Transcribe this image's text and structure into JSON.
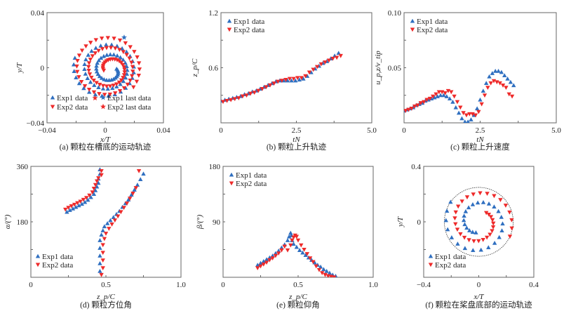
{
  "colors": {
    "exp1": "#2f6fc0",
    "exp2": "#ee2a2a",
    "frame": "#666666",
    "circle": "#333333"
  },
  "chart_data": [
    {
      "id": "a",
      "type": "scatter",
      "caption": "(a) 颗粒在槽底的运动轨迹",
      "xlabel": "x/T",
      "ylabel": "y/T",
      "xlim": [
        -0.04,
        0.04
      ],
      "ylim": [
        -0.04,
        0.04
      ],
      "xticks": [
        "−0.04",
        "0",
        "0.04"
      ],
      "yticks": [
        "−0.04",
        "0",
        "0.04"
      ],
      "xtick_values": [
        -0.04,
        0,
        0.04
      ],
      "ytick_values": [
        -0.04,
        0,
        0.04
      ],
      "legend": [
        "Exp1 data",
        "Exp1 last data",
        "Exp2 data",
        "Exp2 last data"
      ],
      "legend_position": "bottom",
      "series": [
        {
          "name": "Exp1 data",
          "marker": "triangle-up",
          "kind": "spiral",
          "r_start": 0.004,
          "r_end": 0.022,
          "turns": 2.6,
          "n": 75,
          "x": [],
          "y": []
        },
        {
          "name": "Exp1 last data",
          "marker": "star",
          "x": [
            0.013
          ],
          "y": [
            0.022
          ]
        },
        {
          "name": "Exp2 data",
          "marker": "triangle-down",
          "kind": "spiral",
          "r_start": 0.005,
          "r_end": 0.024,
          "turns": 2.6,
          "n": 85,
          "x": [],
          "y": []
        },
        {
          "name": "Exp2 last data",
          "marker": "star",
          "x": [
            -0.007
          ],
          "y": [
            -0.022
          ]
        }
      ]
    },
    {
      "id": "b",
      "type": "scatter",
      "caption": "(b) 颗粒上升轨迹",
      "xlabel": "tN",
      "ylabel": "z_p/C",
      "xlim": [
        0,
        5.0
      ],
      "ylim": [
        0,
        1.2
      ],
      "xticks": [
        "0",
        "2.5",
        "5.0"
      ],
      "yticks": [
        "0.6",
        "1.2"
      ],
      "xtick_values": [
        0,
        2.5,
        5.0
      ],
      "ytick_values": [
        0.6,
        1.2
      ],
      "legend": [
        "Exp1 data",
        "Exp2 data"
      ],
      "legend_position": "top-left",
      "series": [
        {
          "name": "Exp1 data",
          "marker": "triangle-up",
          "x": [
            0.0,
            0.13,
            0.26,
            0.39,
            0.52,
            0.65,
            0.78,
            0.91,
            1.04,
            1.17,
            1.3,
            1.43,
            1.56,
            1.69,
            1.82,
            1.95,
            2.08,
            2.21,
            2.34,
            2.47,
            2.6,
            2.73,
            2.86,
            2.99,
            3.12,
            3.25,
            3.38,
            3.51,
            3.64,
            3.77,
            3.9
          ],
          "y": [
            0.24,
            0.25,
            0.26,
            0.27,
            0.28,
            0.29,
            0.31,
            0.32,
            0.34,
            0.35,
            0.37,
            0.39,
            0.41,
            0.43,
            0.45,
            0.46,
            0.46,
            0.46,
            0.46,
            0.46,
            0.47,
            0.48,
            0.51,
            0.55,
            0.59,
            0.62,
            0.65,
            0.67,
            0.7,
            0.73,
            0.76
          ]
        },
        {
          "name": "Exp2 data",
          "marker": "triangle-down",
          "x": [
            0.07,
            0.2,
            0.33,
            0.46,
            0.59,
            0.72,
            0.85,
            0.98,
            1.11,
            1.24,
            1.37,
            1.5,
            1.63,
            1.76,
            1.89,
            2.02,
            2.15,
            2.28,
            2.41,
            2.54,
            2.67,
            2.8,
            2.93,
            3.06,
            3.19,
            3.32,
            3.45,
            3.58,
            3.71,
            3.84,
            3.97
          ],
          "y": [
            0.23,
            0.24,
            0.25,
            0.26,
            0.27,
            0.29,
            0.3,
            0.32,
            0.33,
            0.35,
            0.37,
            0.39,
            0.41,
            0.43,
            0.45,
            0.46,
            0.47,
            0.48,
            0.48,
            0.49,
            0.49,
            0.51,
            0.55,
            0.58,
            0.61,
            0.64,
            0.66,
            0.68,
            0.7,
            0.71,
            0.73
          ]
        }
      ]
    },
    {
      "id": "c",
      "type": "scatter",
      "caption": "(c) 颗粒上升速度",
      "xlabel": "tN",
      "ylabel": "u_p,z/v_tip",
      "xlim": [
        0,
        5.0
      ],
      "ylim": [
        0,
        0.1
      ],
      "xticks": [
        "0",
        "2.5",
        "5.0"
      ],
      "yticks": [
        "0.05",
        "0.10"
      ],
      "xtick_values": [
        0,
        2.5,
        5.0
      ],
      "ytick_values": [
        0.05,
        0.1
      ],
      "legend": [
        "Exp1 data",
        "Exp2 data"
      ],
      "legend_position": "top-left",
      "series": [
        {
          "name": "Exp1 data",
          "marker": "triangle-up",
          "x": [
            0.0,
            0.1,
            0.2,
            0.3,
            0.4,
            0.5,
            0.6,
            0.7,
            0.8,
            0.9,
            1.0,
            1.1,
            1.2,
            1.3,
            1.4,
            1.5,
            1.6,
            1.7,
            1.8,
            1.9,
            2.0,
            2.1,
            2.2,
            2.3,
            2.4,
            2.5,
            2.6,
            2.7,
            2.8,
            2.9,
            3.0,
            3.1,
            3.2,
            3.3,
            3.4,
            3.5,
            3.6
          ],
          "y": [
            0.011,
            0.012,
            0.013,
            0.014,
            0.016,
            0.017,
            0.018,
            0.02,
            0.021,
            0.022,
            0.023,
            0.024,
            0.025,
            0.025,
            0.024,
            0.022,
            0.019,
            0.014,
            0.009,
            0.004,
            0.001,
            0.001,
            0.003,
            0.007,
            0.013,
            0.021,
            0.029,
            0.036,
            0.042,
            0.045,
            0.047,
            0.047,
            0.046,
            0.043,
            0.04,
            0.037,
            0.034
          ]
        },
        {
          "name": "Exp2 data",
          "marker": "triangle-down",
          "x": [
            0.05,
            0.15,
            0.25,
            0.35,
            0.45,
            0.55,
            0.65,
            0.75,
            0.85,
            0.95,
            1.05,
            1.15,
            1.25,
            1.35,
            1.45,
            1.55,
            1.65,
            1.75,
            1.85,
            1.95,
            2.05,
            2.15,
            2.25,
            2.35,
            2.45,
            2.55,
            2.65,
            2.75,
            2.85,
            2.95,
            3.05,
            3.15,
            3.25,
            3.35,
            3.45,
            3.55
          ],
          "y": [
            0.011,
            0.012,
            0.013,
            0.015,
            0.016,
            0.018,
            0.019,
            0.021,
            0.022,
            0.024,
            0.026,
            0.028,
            0.028,
            0.027,
            0.029,
            0.028,
            0.024,
            0.019,
            0.014,
            0.009,
            0.007,
            0.008,
            0.008,
            0.007,
            0.01,
            0.017,
            0.025,
            0.032,
            0.036,
            0.038,
            0.037,
            0.036,
            0.034,
            0.032,
            0.026,
            0.024
          ]
        }
      ]
    },
    {
      "id": "d",
      "type": "scatter",
      "caption": "(d) 颗粒方位角",
      "xlabel": "z_p/C",
      "ylabel": "α/(°)",
      "xlim": [
        0,
        1.0
      ],
      "ylim": [
        0,
        360
      ],
      "xticks": [
        "0",
        "0.5",
        "1.0"
      ],
      "yticks": [
        "180",
        "360"
      ],
      "xtick_values": [
        0,
        0.5,
        1.0
      ],
      "ytick_values": [
        180,
        360
      ],
      "legend": [
        "Exp1 data",
        "Exp2 data"
      ],
      "legend_position": "bottom-left",
      "series": [
        {
          "name": "Exp1 data",
          "marker": "triangle-up",
          "x": [
            0.24,
            0.26,
            0.28,
            0.3,
            0.32,
            0.34,
            0.36,
            0.38,
            0.4,
            0.42,
            0.43,
            0.44,
            0.45,
            0.45,
            0.46,
            0.46,
            0.46,
            0.46,
            0.46,
            0.46,
            0.46,
            0.47,
            0.48,
            0.49,
            0.51,
            0.53,
            0.55,
            0.57,
            0.59,
            0.61,
            0.63,
            0.65,
            0.67,
            0.69,
            0.71,
            0.73,
            0.75
          ],
          "y": [
            212,
            218,
            223,
            228,
            233,
            238,
            244,
            251,
            260,
            270,
            282,
            294,
            306,
            320,
            335,
            350,
            20,
            45,
            70,
            95,
            120,
            138,
            152,
            165,
            175,
            185,
            195,
            205,
            215,
            228,
            240,
            252,
            268,
            284,
            300,
            318,
            336
          ],
          "segments": [
            16
          ]
        },
        {
          "name": "Exp2 data",
          "marker": "triangle-down",
          "x": [
            0.23,
            0.25,
            0.27,
            0.29,
            0.31,
            0.33,
            0.35,
            0.37,
            0.39,
            0.41,
            0.42,
            0.43,
            0.44,
            0.45,
            0.47,
            0.47,
            0.47,
            0.48,
            0.48,
            0.48,
            0.48,
            0.49,
            0.5,
            0.52,
            0.54,
            0.56,
            0.58,
            0.6,
            0.62,
            0.64,
            0.66,
            0.68,
            0.7,
            0.72
          ],
          "y": [
            220,
            226,
            231,
            236,
            241,
            246,
            252,
            258,
            266,
            276,
            288,
            300,
            312,
            322,
            332,
            345,
            8,
            30,
            55,
            80,
            105,
            125,
            142,
            158,
            172,
            185,
            198,
            212,
            226,
            240,
            256,
            272,
            290,
            345
          ],
          "segments": [
            16
          ]
        }
      ]
    },
    {
      "id": "e",
      "type": "scatter",
      "caption": "(e) 颗粒仰角",
      "xlabel": "z_p/C",
      "ylabel": "β/(°)",
      "xlim": [
        0,
        1.0
      ],
      "ylim": [
        0,
        180
      ],
      "xticks": [
        "0",
        "0.5",
        "1.0"
      ],
      "yticks": [
        "90",
        "180"
      ],
      "xtick_values": [
        0,
        0.5,
        1.0
      ],
      "ytick_values": [
        90,
        180
      ],
      "legend": [
        "Exp1 data",
        "Exp2 data"
      ],
      "legend_position": "top-left",
      "series": [
        {
          "name": "Exp1 data",
          "marker": "triangle-up",
          "x": [
            0.23,
            0.25,
            0.27,
            0.29,
            0.31,
            0.33,
            0.35,
            0.37,
            0.39,
            0.41,
            0.43,
            0.44,
            0.45,
            0.455,
            0.46,
            0.47,
            0.49,
            0.51,
            0.53,
            0.55,
            0.57,
            0.59,
            0.61,
            0.63,
            0.65,
            0.67,
            0.69,
            0.71,
            0.73,
            0.75
          ],
          "y": [
            20,
            23,
            26,
            29,
            32,
            35,
            39,
            43,
            48,
            53,
            60,
            66,
            72,
            68,
            60,
            54,
            49,
            44,
            40,
            36,
            32,
            28,
            24,
            20,
            17,
            13,
            10,
            7,
            4,
            2
          ]
        },
        {
          "name": "Exp2 data",
          "marker": "triangle-down",
          "x": [
            0.23,
            0.25,
            0.27,
            0.29,
            0.31,
            0.33,
            0.35,
            0.37,
            0.39,
            0.41,
            0.43,
            0.45,
            0.46,
            0.47,
            0.48,
            0.49,
            0.5,
            0.52,
            0.54,
            0.56,
            0.58,
            0.6,
            0.62,
            0.64,
            0.66,
            0.68,
            0.7,
            0.72,
            0.74
          ],
          "y": [
            15,
            18,
            21,
            24,
            28,
            31,
            35,
            39,
            44,
            50,
            44,
            52,
            60,
            65,
            68,
            66,
            60,
            52,
            45,
            38,
            31,
            25,
            18,
            12,
            7,
            4,
            2,
            1,
            0
          ]
        }
      ]
    },
    {
      "id": "f",
      "type": "scatter",
      "caption": "(f) 颗粒在桨盘底部的运动轨迹",
      "xlabel": "x/T",
      "ylabel": "y/T",
      "xlim": [
        -0.4,
        0.4
      ],
      "ylim": [
        -0.4,
        0.4
      ],
      "xticks": [
        "−0.4",
        "0",
        "0.4"
      ],
      "yticks": [
        "0",
        "0.4"
      ],
      "xtick_values": [
        -0.4,
        0,
        0.4
      ],
      "ytick_values": [
        0,
        0.4
      ],
      "legend": [
        "Exp1 data",
        "Exp2 data"
      ],
      "legend_position": "bottom-left",
      "circle_radius": 0.25,
      "series": [
        {
          "name": "Exp1 data",
          "marker": "triangle-up",
          "kind": "spiral",
          "r_start": 0.08,
          "r_end": 0.25,
          "theta_start_deg": 255,
          "theta_end_deg": -215,
          "n": 30,
          "x": [],
          "y": []
        },
        {
          "name": "Exp2 data",
          "marker": "triangle-down",
          "kind": "spiral",
          "r_start": 0.085,
          "r_end": 0.25,
          "theta_start_deg": 50,
          "theta_end_deg": -385,
          "n": 32,
          "x": [],
          "y": []
        }
      ]
    }
  ]
}
